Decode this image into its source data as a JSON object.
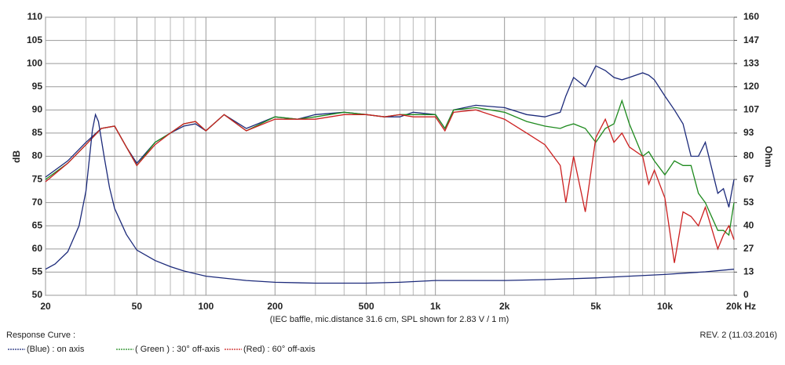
{
  "chart_data": {
    "type": "line",
    "xlabel": "(IEC baffle, mic.distance 31.6 cm, SPL shown for 2.83 V / 1 m)",
    "ylabel": "dB",
    "y2label": "Ohm",
    "x_log": true,
    "grid": true,
    "x": [
      20,
      25,
      30,
      35,
      40,
      45,
      50,
      60,
      70,
      80,
      90,
      100,
      120,
      150,
      200,
      250,
      300,
      400,
      500,
      600,
      700,
      800,
      1000,
      1100,
      1200,
      1500,
      2000,
      2500,
      3000,
      3500,
      3700,
      4000,
      4500,
      5000,
      5500,
      6000,
      6500,
      7000,
      8000,
      8500,
      9000,
      10000,
      11000,
      12000,
      13000,
      14000,
      15000,
      17000,
      18000,
      19000,
      20000
    ],
    "series": [
      {
        "name": "(Blue) : on axis",
        "color": "#1c2a7a",
        "values": [
          75.5,
          79,
          83,
          86,
          86.5,
          82,
          78.5,
          83,
          85,
          86.5,
          87,
          85.5,
          89,
          86,
          88.5,
          88,
          89,
          89.5,
          89,
          88.5,
          88.5,
          89.5,
          89,
          86,
          90,
          91,
          90.5,
          89,
          88.5,
          89.5,
          93,
          97,
          95,
          99.5,
          98.5,
          97,
          96.5,
          97,
          98,
          97.5,
          96.5,
          93,
          90,
          87,
          80,
          80,
          83,
          72,
          73,
          69,
          75
        ]
      },
      {
        "name": "( Green ) : 30° off-axis",
        "color": "#1e8a1e",
        "values": [
          75,
          78.5,
          82.5,
          86,
          86.5,
          82,
          78,
          83,
          85,
          87,
          87.5,
          85.5,
          89,
          85.5,
          88.5,
          88,
          88.5,
          89.5,
          89,
          88.5,
          89,
          89,
          89,
          86,
          90,
          90.5,
          89.5,
          87.5,
          86.5,
          86,
          86.5,
          87,
          86,
          83,
          86,
          87,
          92,
          87,
          80,
          81,
          79,
          76,
          79,
          78,
          78,
          72,
          70,
          64,
          64,
          63,
          70
        ]
      },
      {
        "name": "(Red) : 60° off-axis",
        "color": "#cc2020",
        "values": [
          74.5,
          78.5,
          82.5,
          86,
          86.5,
          82,
          78,
          82.5,
          85,
          87,
          87.5,
          85.5,
          89,
          85.5,
          88,
          88,
          88,
          89,
          89,
          88.5,
          89,
          88.5,
          88.5,
          85.5,
          89.5,
          90,
          88,
          85,
          82.5,
          78,
          70,
          80,
          68,
          84,
          88,
          83,
          85,
          82,
          80,
          74,
          77,
          71,
          57,
          68,
          67,
          65,
          69,
          60,
          63,
          65,
          62
        ]
      },
      {
        "color": "#1c2a7a",
        "axis": "y2",
        "x": [
          20,
          22,
          25,
          28,
          30,
          32,
          33,
          34,
          36,
          38,
          40,
          45,
          50,
          60,
          70,
          80,
          100,
          150,
          200,
          300,
          500,
          700,
          1000,
          1500,
          2000,
          3000,
          5000,
          7000,
          10000,
          15000,
          20000
        ],
        "values": [
          15,
          18,
          25,
          40,
          60,
          95,
          104,
          100,
          80,
          62,
          50,
          35,
          26,
          20,
          16.5,
          14,
          11,
          8.5,
          7.5,
          7,
          7,
          7.5,
          8.5,
          8.5,
          8.5,
          9,
          10,
          11,
          12,
          13.5,
          15
        ]
      }
    ],
    "xlim": [
      20,
      20000
    ],
    "xticks": [
      20,
      50,
      100,
      200,
      500,
      {
        "value": 1000,
        "label": "1k"
      },
      {
        "value": 2000,
        "label": "2k"
      },
      {
        "value": 5000,
        "label": "5k"
      },
      {
        "value": 10000,
        "label": "10k"
      },
      {
        "value": 20000,
        "label": "20k Hz"
      }
    ],
    "x_minor_ticks": [
      30,
      40,
      60,
      70,
      80,
      90,
      300,
      400,
      600,
      700,
      800,
      900,
      3000,
      4000,
      6000,
      7000,
      8000,
      9000
    ],
    "ylim": [
      50,
      110
    ],
    "yticks": [
      50,
      55,
      60,
      65,
      70,
      75,
      80,
      85,
      90,
      95,
      100,
      105,
      110
    ],
    "y2lim": [
      0,
      160
    ],
    "y2ticks": [
      0,
      {
        "value": 13.333,
        "label": "13"
      },
      {
        "value": 26.667,
        "label": "27"
      },
      40,
      {
        "value": 53.333,
        "label": "53"
      },
      {
        "value": 66.667,
        "label": "67"
      },
      80,
      {
        "value": 93.333,
        "label": "93"
      },
      {
        "value": 106.667,
        "label": "107"
      },
      120,
      {
        "value": 133.333,
        "label": "133"
      },
      {
        "value": 146.667,
        "label": "147"
      },
      160
    ],
    "legend_title": "Response Curve :",
    "revision": "REV. 2 (11.03.2016)"
  }
}
